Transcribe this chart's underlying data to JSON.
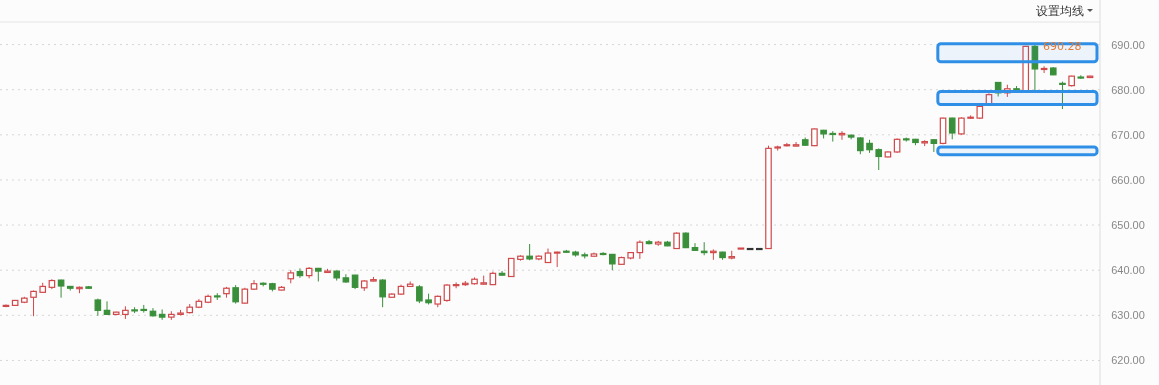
{
  "chart_data": {
    "type": "candlestick",
    "categories": [
      null,
      null,
      null,
      null,
      null,
      null,
      null,
      null,
      null,
      null,
      null,
      null,
      null,
      null,
      null,
      null,
      null,
      null,
      null,
      null,
      null,
      null,
      null,
      null,
      null,
      null,
      null,
      null,
      null,
      null,
      null,
      null,
      null,
      null,
      null,
      null,
      null,
      null,
      null,
      null,
      null,
      null,
      null,
      null,
      null,
      null,
      null,
      null,
      null,
      null,
      null,
      null,
      null,
      null,
      null,
      null,
      null,
      null,
      null,
      null,
      null,
      null,
      null,
      null,
      null,
      null,
      null,
      null,
      null,
      null,
      null,
      null,
      null,
      null,
      null,
      null,
      null,
      null,
      null,
      null,
      null,
      null,
      null,
      null,
      null,
      null,
      null,
      null,
      null,
      null,
      null,
      null,
      null,
      null,
      null,
      null,
      null,
      null,
      null,
      null,
      null,
      null,
      null,
      null,
      null,
      null,
      null,
      null,
      null,
      null,
      null,
      null,
      null,
      null,
      null,
      null,
      null,
      null,
      null
    ],
    "ohlc": [
      [
        632.0,
        632.4,
        631.8,
        632.2
      ],
      [
        632.2,
        633.4,
        632.1,
        633.3
      ],
      [
        632.9,
        634.1,
        632.7,
        633.8
      ],
      [
        634.0,
        635.5,
        629.8,
        635.3
      ],
      [
        635.1,
        637.2,
        635.0,
        636.4
      ],
      [
        636.2,
        638.0,
        635.8,
        637.7
      ],
      [
        637.8,
        637.9,
        633.9,
        636.5
      ],
      [
        636.4,
        636.5,
        635.5,
        636.0
      ],
      [
        635.9,
        636.4,
        634.9,
        636.2
      ],
      [
        636.3,
        636.5,
        635.9,
        636.0
      ],
      [
        633.4,
        633.7,
        629.9,
        631.1
      ],
      [
        631.1,
        633.1,
        630.1,
        630.2
      ],
      [
        630.2,
        630.8,
        630.0,
        630.7
      ],
      [
        630.2,
        632.0,
        629.2,
        631.1
      ],
      [
        631.2,
        631.8,
        630.5,
        631.0
      ],
      [
        631.3,
        632.3,
        630.6,
        631.1
      ],
      [
        630.9,
        631.6,
        629.7,
        629.9
      ],
      [
        630.2,
        631.3,
        629.0,
        629.6
      ],
      [
        629.6,
        630.9,
        629.0,
        630.2
      ],
      [
        630.2,
        631.2,
        630.0,
        630.5
      ],
      [
        630.6,
        632.5,
        630.4,
        631.8
      ],
      [
        631.8,
        633.6,
        631.6,
        633.1
      ],
      [
        632.9,
        634.6,
        632.7,
        634.2
      ],
      [
        634.3,
        634.9,
        633.4,
        634.1
      ],
      [
        634.8,
        636.3,
        633.9,
        636.0
      ],
      [
        636.1,
        636.7,
        632.6,
        633.0
      ],
      [
        632.7,
        636.1,
        632.6,
        635.8
      ],
      [
        635.8,
        637.8,
        635.6,
        637.0
      ],
      [
        637.1,
        637.3,
        636.4,
        636.9
      ],
      [
        637.0,
        637.2,
        635.3,
        635.8
      ],
      [
        635.6,
        636.5,
        635.5,
        636.2
      ],
      [
        638.1,
        640.0,
        637.1,
        639.4
      ],
      [
        639.7,
        640.4,
        638.3,
        638.8
      ],
      [
        638.8,
        640.7,
        638.2,
        640.4
      ],
      [
        640.4,
        640.5,
        637.5,
        639.8
      ],
      [
        639.5,
        640.3,
        639.4,
        639.8
      ],
      [
        639.8,
        639.9,
        637.7,
        638.3
      ],
      [
        638.3,
        639.1,
        637.2,
        637.4
      ],
      [
        638.9,
        639.0,
        635.8,
        636.2
      ],
      [
        636.1,
        637.8,
        635.4,
        637.6
      ],
      [
        637.6,
        638.5,
        637.5,
        637.9
      ],
      [
        637.8,
        638.0,
        631.8,
        634.1
      ],
      [
        634.0,
        634.9,
        633.9,
        634.7
      ],
      [
        634.7,
        636.8,
        634.5,
        636.4
      ],
      [
        636.4,
        637.5,
        636.3,
        636.9
      ],
      [
        636.3,
        636.7,
        632.7,
        633.2
      ],
      [
        633.4,
        634.8,
        632.4,
        632.8
      ],
      [
        632.5,
        634.4,
        631.8,
        634.2
      ],
      [
        633.3,
        636.9,
        633.0,
        636.7
      ],
      [
        636.6,
        637.3,
        636.0,
        636.8
      ],
      [
        636.8,
        637.6,
        636.5,
        637.1
      ],
      [
        637.0,
        638.4,
        636.8,
        638.0
      ],
      [
        636.9,
        638.8,
        636.8,
        637.2
      ],
      [
        636.8,
        639.7,
        636.7,
        639.3
      ],
      [
        639.3,
        639.8,
        638.8,
        638.9
      ],
      [
        638.6,
        642.7,
        638.5,
        642.6
      ],
      [
        642.4,
        643.3,
        642.1,
        643.1
      ],
      [
        643.1,
        645.8,
        642.2,
        642.5
      ],
      [
        642.5,
        643.3,
        642.2,
        643.1
      ],
      [
        641.7,
        644.8,
        641.6,
        643.8
      ],
      [
        643.8,
        644.1,
        640.7,
        644.0
      ],
      [
        644.2,
        644.5,
        643.8,
        644.0
      ],
      [
        644.0,
        644.3,
        643.0,
        643.4
      ],
      [
        643.4,
        643.9,
        642.6,
        643.2
      ],
      [
        643.1,
        643.9,
        643.0,
        643.6
      ],
      [
        643.7,
        644.0,
        643.3,
        643.6
      ],
      [
        643.5,
        643.6,
        640.0,
        641.4
      ],
      [
        641.3,
        643.0,
        641.2,
        642.8
      ],
      [
        642.7,
        644.0,
        642.4,
        643.9
      ],
      [
        643.9,
        646.6,
        642.5,
        646.2
      ],
      [
        646.3,
        646.7,
        645.7,
        645.9
      ],
      [
        645.8,
        646.5,
        645.4,
        646.2
      ],
      [
        646.2,
        646.5,
        645.3,
        645.4
      ],
      [
        644.8,
        648.4,
        644.7,
        648.2
      ],
      [
        648.2,
        648.4,
        644.9,
        645.0
      ],
      [
        645.0,
        646.0,
        644.3,
        644.4
      ],
      [
        644.2,
        646.2,
        643.3,
        643.9
      ],
      [
        643.9,
        644.6,
        642.3,
        644.2
      ],
      [
        644.0,
        644.1,
        642.3,
        642.8
      ],
      [
        642.7,
        644.3,
        642.4,
        643.0
      ],
      [
        644.8,
        644.9,
        644.8,
        644.9
      ],
      [
        644.8,
        644.8,
        644.8,
        644.8
      ],
      [
        644.8,
        644.8,
        644.8,
        644.8
      ],
      [
        644.8,
        667.6,
        644.8,
        667.0
      ],
      [
        667.1,
        667.6,
        666.5,
        667.3
      ],
      [
        667.6,
        668.2,
        667.4,
        667.8
      ],
      [
        667.5,
        668.4,
        667.4,
        667.8
      ],
      [
        668.9,
        669.4,
        667.6,
        667.7
      ],
      [
        667.6,
        671.4,
        667.5,
        671.3
      ],
      [
        671.0,
        671.1,
        669.2,
        670.2
      ],
      [
        670.3,
        670.8,
        668.5,
        670.1
      ],
      [
        670.0,
        670.8,
        668.9,
        670.3
      ],
      [
        669.9,
        670.1,
        669.0,
        669.5
      ],
      [
        669.3,
        669.5,
        665.7,
        666.5
      ],
      [
        668.1,
        668.9,
        666.0,
        666.7
      ],
      [
        666.7,
        667.0,
        662.2,
        665.2
      ],
      [
        665.1,
        666.3,
        665.0,
        666.2
      ],
      [
        666.2,
        669.2,
        666.0,
        669.0
      ],
      [
        669.1,
        669.4,
        668.5,
        669.0
      ],
      [
        669.0,
        669.1,
        667.7,
        668.3
      ],
      [
        668.2,
        668.8,
        667.5,
        668.5
      ],
      [
        668.9,
        669.0,
        666.2,
        668.1
      ],
      [
        668.1,
        673.8,
        667.9,
        673.7
      ],
      [
        673.7,
        673.8,
        669.0,
        670.4
      ],
      [
        670.2,
        673.9,
        670.0,
        673.7
      ],
      [
        673.7,
        674.3,
        673.5,
        673.9
      ],
      [
        673.7,
        676.4,
        673.5,
        676.3
      ],
      [
        676.7,
        679.2,
        676.5,
        678.9
      ],
      [
        681.6,
        681.7,
        678.5,
        679.3
      ],
      [
        679.3,
        681.1,
        678.4,
        680.2
      ],
      [
        680.2,
        680.8,
        679.6,
        680.0
      ],
      [
        679.8,
        689.7,
        679.6,
        689.6
      ],
      [
        689.6,
        690.28,
        679.4,
        684.6
      ],
      [
        684.5,
        685.2,
        683.7,
        684.7
      ],
      [
        684.8,
        685.0,
        683.2,
        683.3
      ],
      [
        681.4,
        681.8,
        675.7,
        681.3
      ],
      [
        680.9,
        683.1,
        680.7,
        683.0
      ],
      [
        682.8,
        683.2,
        682.4,
        682.7
      ],
      [
        682.7,
        683.1,
        682.6,
        683.0
      ]
    ],
    "colors": [
      "#d0484a",
      "#d0484a",
      "#d0484a",
      "#d0484a",
      "#d0484a",
      "#d0484a",
      "#3a8f3a",
      "#3a8f3a",
      "#d0484a",
      "#3a8f3a",
      "#3a8f3a",
      "#3a8f3a",
      "#d0484a",
      "#d0484a",
      "#3a8f3a",
      "#3a8f3a",
      "#3a8f3a",
      "#3a8f3a",
      "#d0484a",
      "#d0484a",
      "#d0484a",
      "#d0484a",
      "#d0484a",
      "#3a8f3a",
      "#d0484a",
      "#3a8f3a",
      "#d0484a",
      "#d0484a",
      "#3a8f3a",
      "#3a8f3a",
      "#d0484a",
      "#d0484a",
      "#3a8f3a",
      "#d0484a",
      "#3a8f3a",
      "#d0484a",
      "#3a8f3a",
      "#3a8f3a",
      "#3a8f3a",
      "#d0484a",
      "#d0484a",
      "#3a8f3a",
      "#d0484a",
      "#d0484a",
      "#d0484a",
      "#3a8f3a",
      "#3a8f3a",
      "#d0484a",
      "#d0484a",
      "#d0484a",
      "#d0484a",
      "#d0484a",
      "#d0484a",
      "#d0484a",
      "#3a8f3a",
      "#d0484a",
      "#d0484a",
      "#3a8f3a",
      "#d0484a",
      "#d0484a",
      "#d0484a",
      "#3a8f3a",
      "#3a8f3a",
      "#3a8f3a",
      "#d0484a",
      "#3a8f3a",
      "#3a8f3a",
      "#d0484a",
      "#d0484a",
      "#d0484a",
      "#3a8f3a",
      "#d0484a",
      "#3a8f3a",
      "#d0484a",
      "#3a8f3a",
      "#3a8f3a",
      "#3a8f3a",
      "#d0484a",
      "#3a8f3a",
      "#d0484a",
      "#d0484a",
      "#333333",
      "#333333",
      "#d0484a",
      "#d0484a",
      "#d0484a",
      "#d0484a",
      "#3a8f3a",
      "#d0484a",
      "#3a8f3a",
      "#3a8f3a",
      "#d0484a",
      "#3a8f3a",
      "#3a8f3a",
      "#3a8f3a",
      "#3a8f3a",
      "#d0484a",
      "#d0484a",
      "#3a8f3a",
      "#3a8f3a",
      "#d0484a",
      "#3a8f3a",
      "#d0484a",
      "#3a8f3a",
      "#d0484a",
      "#d0484a",
      "#d0484a",
      "#d0484a",
      "#3a8f3a",
      "#d0484a",
      "#3a8f3a",
      "#d0484a",
      "#3a8f3a",
      "#d0484a",
      "#3a8f3a",
      "#3a8f3a",
      "#d0484a",
      "#3a8f3a",
      "#d0484a"
    ],
    "ylim": [
      615,
      695
    ],
    "yticks": [
      {
        "value": 620,
        "label": "620.00"
      },
      {
        "value": 630,
        "label": "630.00"
      },
      {
        "value": 640,
        "label": "640.00"
      },
      {
        "value": 650,
        "label": "650.00"
      },
      {
        "value": 660,
        "label": "660.00"
      },
      {
        "value": 670,
        "label": "670.00"
      },
      {
        "value": 680,
        "label": "680.00"
      },
      {
        "value": 690,
        "label": "690.00"
      }
    ],
    "grid": "y",
    "annotations": [
      "设置均线",
      "690.28"
    ],
    "bands": [
      {
        "axis": "y",
        "from": 686.2,
        "to": 690.2,
        "color": "#2f8fe6"
      },
      {
        "axis": "y",
        "from": 676.7,
        "to": 679.6,
        "color": "#2f8fe6"
      },
      {
        "axis": "y",
        "from": 665.6,
        "to": 667.3,
        "color": "#2f8fe6"
      }
    ]
  }
}
